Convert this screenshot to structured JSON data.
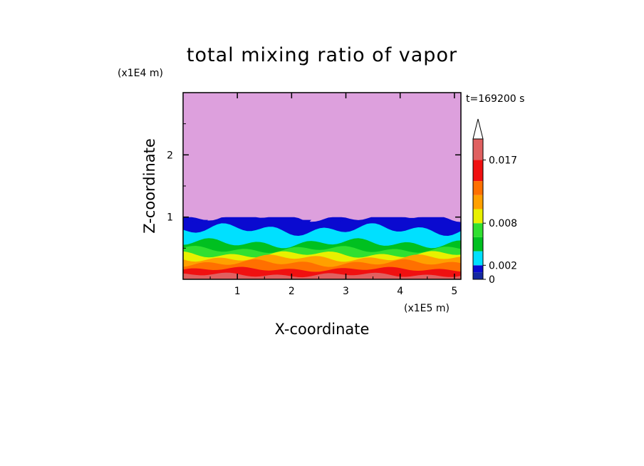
{
  "chart_data": {
    "type": "heatmap",
    "title": "total mixing ratio of vapor",
    "xlabel": "X-coordinate",
    "ylabel": "Z-coordinate",
    "x_scale_label": "(x1E5 m)",
    "y_scale_label": "(x1E4 m)",
    "time_label": "t=169200 s",
    "xlim": [
      0,
      5.12
    ],
    "ylim": [
      0,
      3.0
    ],
    "x_ticks": [
      "1",
      "2",
      "3",
      "4",
      "5"
    ],
    "y_ticks": [
      "1",
      "2"
    ],
    "colorbar": {
      "levels": [
        0,
        0.001,
        0.002,
        0.004,
        0.006,
        0.008,
        0.01,
        0.012,
        0.014,
        0.017,
        0.02
      ],
      "tick_labels": [
        "0",
        "0.002",
        "0.008",
        "0.017"
      ],
      "colors": [
        "#1428a0",
        "#0a0ad0",
        "#00e0ff",
        "#00c020",
        "#30e030",
        "#e8f000",
        "#ffa000",
        "#ff7000",
        "#f01010",
        "#e06060",
        "#f8b8b8"
      ],
      "extend": "max"
    },
    "background_above_layer": "#dda0dd",
    "layer_top_z": 1.0
  }
}
